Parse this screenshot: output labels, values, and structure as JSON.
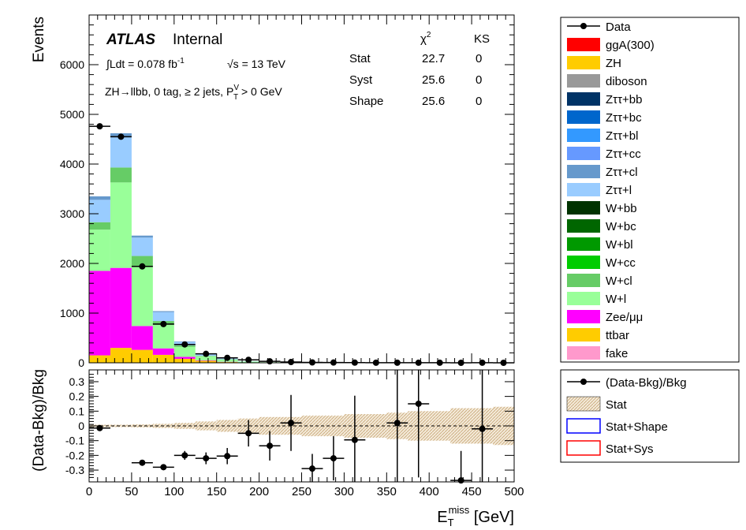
{
  "chart_data": [
    {
      "type": "bar",
      "stacked": true,
      "ylabel": "Events",
      "ylim": [
        0,
        7000
      ],
      "xlim": [
        0,
        500
      ],
      "yticks": [
        "0",
        "1000",
        "2000",
        "3000",
        "4000",
        "5000",
        "6000"
      ],
      "bin_edges": [
        0,
        25,
        50,
        75,
        100,
        125,
        150,
        175,
        200,
        225,
        250,
        275,
        300,
        325,
        350,
        375,
        400,
        425,
        450,
        475,
        500
      ],
      "annotations": {
        "atlas": "ATLAS",
        "internal": "Internal",
        "lumi_prefix": "∫Ldt = 0.078 fb",
        "lumi_exp": "-1",
        "sqrt_s": "√s = 13 TeV",
        "region": "ZH→llbb, 0 tag, ≥ 2 jets,  P",
        "region_sup": "V",
        "region_sub": "T",
        "region_suffix": " > 0 GeV"
      },
      "stats_table": {
        "header_chi2": "χ",
        "header_chi2_sup": "2",
        "header_ks": "KS",
        "rows": [
          {
            "label": "Stat",
            "chi2": "22.7",
            "ks": "0"
          },
          {
            "label": "Syst",
            "chi2": "25.6",
            "ks": "0"
          },
          {
            "label": "Shape",
            "chi2": "25.6",
            "ks": "0"
          }
        ]
      },
      "series": [
        {
          "name": "ttbar",
          "color": "#ffcc00",
          "values": [
            150,
            300,
            260,
            160,
            80,
            40,
            15,
            5,
            2,
            0,
            0,
            0,
            0,
            0,
            0,
            0,
            0,
            0,
            0,
            0
          ]
        },
        {
          "name": "Zee/μμ",
          "color": "#ff00ff",
          "values": [
            1700,
            1610,
            480,
            130,
            40,
            10,
            5,
            2,
            0,
            0,
            0,
            0,
            0,
            0,
            0,
            0,
            0,
            0,
            0,
            0
          ]
        },
        {
          "name": "W+l",
          "color": "#99ff99",
          "values": [
            830,
            1720,
            1200,
            470,
            200,
            80,
            45,
            20,
            10,
            5,
            2,
            0,
            0,
            0,
            0,
            0,
            0,
            0,
            0,
            0
          ]
        },
        {
          "name": "W+cl",
          "color": "#66cc66",
          "values": [
            150,
            300,
            210,
            80,
            30,
            10,
            5,
            0,
            0,
            0,
            0,
            0,
            0,
            0,
            0,
            0,
            0,
            0,
            0,
            0
          ]
        },
        {
          "name": "Zττ+l",
          "color": "#99ccff",
          "values": [
            450,
            620,
            370,
            180,
            70,
            30,
            15,
            5,
            0,
            0,
            0,
            0,
            0,
            0,
            0,
            0,
            0,
            0,
            0,
            0
          ]
        },
        {
          "name": "Zττ+cl",
          "color": "#6699cc",
          "values": [
            70,
            70,
            40,
            20,
            10,
            5,
            0,
            0,
            0,
            0,
            0,
            0,
            0,
            0,
            0,
            0,
            0,
            0,
            0,
            0
          ]
        }
      ],
      "data": {
        "name": "Data",
        "values": [
          4760,
          4550,
          1940,
          780,
          370,
          180,
          100,
          60,
          30,
          15,
          8,
          5,
          3,
          2,
          2,
          1,
          1,
          0,
          1,
          0
        ]
      },
      "legend": [
        {
          "label": "Data",
          "color": "#000000",
          "marker": true
        },
        {
          "label": "ggA(300)",
          "color": "#ff0000"
        },
        {
          "label": "ZH",
          "color": "#ffcc00"
        },
        {
          "label": "diboson",
          "color": "#999999"
        },
        {
          "label": "Zττ+bb",
          "color": "#003366"
        },
        {
          "label": "Zττ+bc",
          "color": "#0066cc"
        },
        {
          "label": "Zττ+bl",
          "color": "#3399ff"
        },
        {
          "label": "Zττ+cc",
          "color": "#6699ff"
        },
        {
          "label": "Zττ+cl",
          "color": "#6699cc"
        },
        {
          "label": "Zττ+l",
          "color": "#99ccff"
        },
        {
          "label": "W+bb",
          "color": "#003300"
        },
        {
          "label": "W+bc",
          "color": "#006600"
        },
        {
          "label": "W+bl",
          "color": "#009900"
        },
        {
          "label": "W+cc",
          "color": "#00cc00"
        },
        {
          "label": "W+cl",
          "color": "#66cc66"
        },
        {
          "label": "W+l",
          "color": "#99ff99"
        },
        {
          "label": "Zee/μμ",
          "color": "#ff00ff"
        },
        {
          "label": "ttbar",
          "color": "#ffcc00"
        },
        {
          "label": "fake",
          "color": "#ff99cc"
        }
      ]
    },
    {
      "type": "scatter",
      "ylabel": "(Data-Bkg)/Bkg",
      "xlabel": "E",
      "xlabel_sub": "T",
      "xlabel_sup": "miss",
      "xlabel_unit": " [GeV]",
      "xlim": [
        0,
        500
      ],
      "ylim": [
        -0.38,
        0.38
      ],
      "xticks": [
        "0",
        "50",
        "100",
        "150",
        "200",
        "250",
        "300",
        "350",
        "400",
        "450",
        "500"
      ],
      "yticks": [
        "-0.3",
        "-0.2",
        "-0.1",
        "0",
        "0.1",
        "0.2",
        "0.3"
      ],
      "points": [
        {
          "x": 12.5,
          "y": -0.015,
          "err": 0.01
        },
        {
          "x": 62.5,
          "y": -0.25,
          "err": 0.015
        },
        {
          "x": 87.5,
          "y": -0.28,
          "err": 0.02
        },
        {
          "x": 112.5,
          "y": -0.2,
          "err": 0.03
        },
        {
          "x": 137.5,
          "y": -0.22,
          "err": 0.04
        },
        {
          "x": 162.5,
          "y": -0.205,
          "err": 0.055
        },
        {
          "x": 187.5,
          "y": -0.05,
          "err": 0.09
        },
        {
          "x": 212.5,
          "y": -0.135,
          "err": 0.1
        },
        {
          "x": 237.5,
          "y": 0.02,
          "err": 0.19
        },
        {
          "x": 262.5,
          "y": -0.29,
          "err": 0.1
        },
        {
          "x": 287.5,
          "y": -0.22,
          "err": 0.15
        },
        {
          "x": 312.5,
          "y": -0.095,
          "err": 0.3
        },
        {
          "x": 362.5,
          "y": 0.02,
          "err": 0.5
        },
        {
          "x": 387.5,
          "y": 0.15,
          "err": 0.5
        },
        {
          "x": 437.5,
          "y": -0.37,
          "err": 0.2
        },
        {
          "x": 462.5,
          "y": -0.02,
          "err": 0.5
        }
      ],
      "stat_band": [
        0.008,
        0.008,
        0.01,
        0.014,
        0.02,
        0.03,
        0.04,
        0.05,
        0.06,
        0.06,
        0.07,
        0.07,
        0.08,
        0.08,
        0.09,
        0.1,
        0.1,
        0.12,
        0.12,
        0.13
      ],
      "legend": [
        {
          "label": "(Data-Bkg)/Bkg",
          "kind": "marker"
        },
        {
          "label": "Stat",
          "kind": "hatch"
        },
        {
          "label": "Stat+Shape",
          "kind": "box",
          "color": "#0000ff"
        },
        {
          "label": "Stat+Sys",
          "kind": "box",
          "color": "#ff0000"
        }
      ]
    }
  ]
}
